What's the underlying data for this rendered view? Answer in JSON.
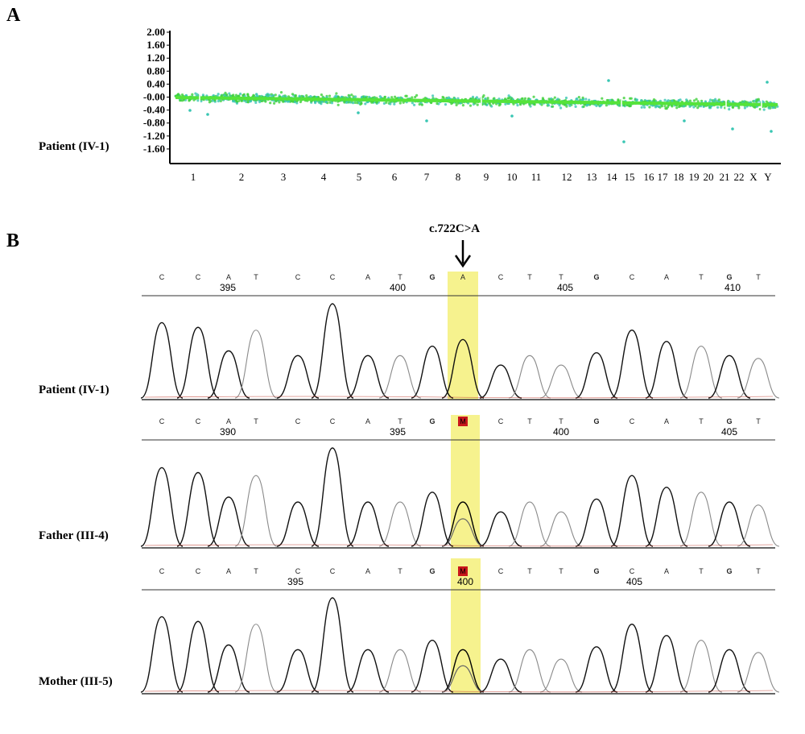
{
  "panel_a": {
    "label": "A",
    "sample_label": "Patient (IV-1)",
    "yticks": [
      "2.00",
      "1.60",
      "1.20",
      "0.80",
      "0.40",
      "-0.00",
      "-0.40",
      "-0.80",
      "-1.20",
      "-1.60"
    ],
    "chromosomes": [
      "1",
      "2",
      "3",
      "4",
      "5",
      "6",
      "7",
      "8",
      "9",
      "10",
      "11",
      "12",
      "13",
      "14",
      "15",
      "16",
      "17",
      "18",
      "19",
      "20",
      "21",
      "22",
      "X",
      "Y"
    ]
  },
  "panel_b": {
    "label": "B",
    "mutation": "c.722C>A",
    "tracks": [
      {
        "label": "Patient (IV-1)",
        "bases": [
          "C",
          "C",
          "A",
          "T",
          "C",
          "C",
          "A",
          "T",
          "G",
          "A",
          "C",
          "T",
          "T",
          "G",
          "C",
          "A",
          "T",
          "G",
          "T"
        ],
        "positions": [
          "395",
          "400",
          "405",
          "410"
        ],
        "variant_base": "A"
      },
      {
        "label": "Father (III-4)",
        "bases": [
          "C",
          "C",
          "A",
          "T",
          "C",
          "C",
          "A",
          "T",
          "G",
          "M",
          "C",
          "T",
          "T",
          "G",
          "C",
          "A",
          "T",
          "G",
          "T"
        ],
        "positions": [
          "390",
          "395",
          "400",
          "405"
        ],
        "variant_base": "M"
      },
      {
        "label": "Mother (III-5)",
        "bases": [
          "C",
          "C",
          "A",
          "T",
          "C",
          "C",
          "A",
          "T",
          "G",
          "M",
          "C",
          "T",
          "T",
          "G",
          "C",
          "A",
          "T",
          "G",
          "T"
        ],
        "positions": [
          "395",
          "400",
          "405"
        ],
        "variant_base": "M"
      }
    ]
  },
  "colors": {
    "scatter_green": "#3fd13a",
    "scatter_cyan": "#39c6b3",
    "highlight": "#f5f07a",
    "variant_box": "#c8161b"
  }
}
